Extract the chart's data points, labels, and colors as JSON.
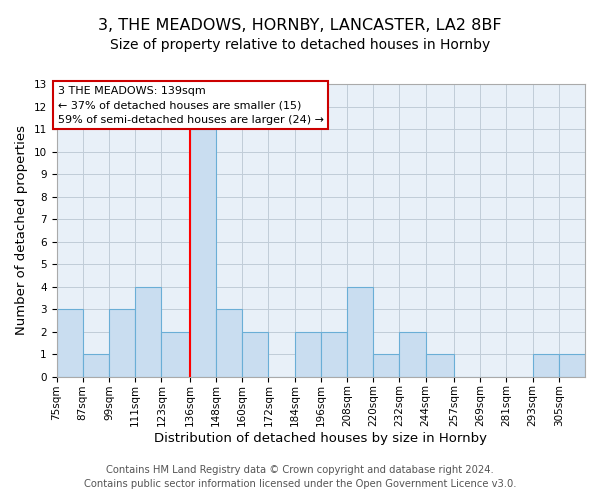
{
  "title": "3, THE MEADOWS, HORNBY, LANCASTER, LA2 8BF",
  "subtitle": "Size of property relative to detached houses in Hornby",
  "xlabel": "Distribution of detached houses by size in Hornby",
  "ylabel": "Number of detached properties",
  "footer_line1": "Contains HM Land Registry data © Crown copyright and database right 2024.",
  "footer_line2": "Contains public sector information licensed under the Open Government Licence v3.0.",
  "annotation_line1": "3 THE MEADOWS: 139sqm",
  "annotation_line2": "← 37% of detached houses are smaller (15)",
  "annotation_line3": "59% of semi-detached houses are larger (24) →",
  "bar_left_edges": [
    75,
    87,
    99,
    111,
    123,
    136,
    148,
    160,
    172,
    184,
    196,
    208,
    220,
    232,
    244,
    257,
    269,
    281,
    293,
    305
  ],
  "bar_widths": [
    12,
    12,
    12,
    12,
    13,
    12,
    12,
    12,
    12,
    12,
    12,
    12,
    12,
    12,
    13,
    12,
    12,
    12,
    12,
    12
  ],
  "bar_heights": [
    3,
    1,
    3,
    4,
    2,
    11,
    3,
    2,
    0,
    2,
    2,
    4,
    1,
    2,
    1,
    0,
    0,
    0,
    1,
    1
  ],
  "bar_color": "#c9ddf0",
  "bar_edge_color": "#6aaed6",
  "red_line_x": 136,
  "ylim": [
    0,
    13
  ],
  "yticks": [
    0,
    1,
    2,
    3,
    4,
    5,
    6,
    7,
    8,
    9,
    10,
    11,
    12,
    13
  ],
  "bg_color": "#ffffff",
  "plot_bg_color": "#e8f0f8",
  "grid_color": "#c0ccd8",
  "annotation_box_color": "#ffffff",
  "annotation_box_edge": "#cc0000",
  "title_fontsize": 11.5,
  "subtitle_fontsize": 10,
  "axis_label_fontsize": 9.5,
  "tick_fontsize": 7.5,
  "footer_fontsize": 7.2
}
